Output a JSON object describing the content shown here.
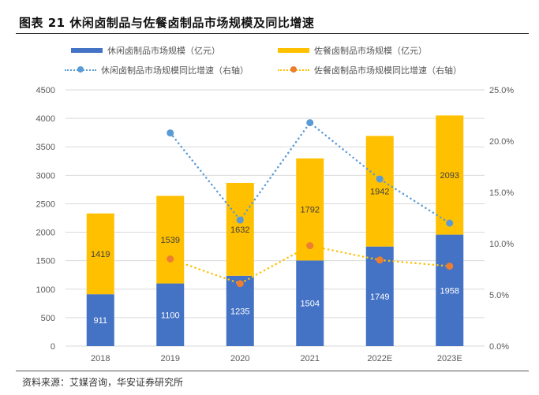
{
  "figure": {
    "title": "图表 21  休闲卤制品与佐餐卤制品市场规模及同比增速",
    "source": "资料来源：艾媒咨询，华安证券研究所"
  },
  "colors": {
    "leisure_bar": "#4472C4",
    "restaurant_bar": "#FFC000",
    "leisure_line": "#5B9BD5",
    "restaurant_line_dots": "#FFC000",
    "restaurant_line_marker": "#ED7D31",
    "grid": "#D9D9D9",
    "tick_text": "#595959"
  },
  "chart_data": {
    "type": "bar",
    "title": "休闲卤制品与佐餐卤制品市场规模及同比增速",
    "categories": [
      "2018",
      "2019",
      "2020",
      "2021",
      "2022E",
      "2023E"
    ],
    "series": [
      {
        "name": "休闲卤制品市场规模（亿元）",
        "type": "bar",
        "stack": "size",
        "axis": "left",
        "values": [
          911,
          1100,
          1235,
          1504,
          1749,
          1958
        ]
      },
      {
        "name": "佐餐卤制品市场规模（亿元）",
        "type": "bar",
        "stack": "size",
        "axis": "left",
        "values": [
          1419,
          1539,
          1632,
          1792,
          1942,
          2093
        ]
      },
      {
        "name": "休闲卤制品市场规模同比增速（右轴）",
        "type": "line",
        "style": "dotted",
        "axis": "right",
        "values": [
          null,
          20.8,
          12.3,
          21.8,
          16.3,
          12.0
        ]
      },
      {
        "name": "佐餐卤制品市场规模同比增速（右轴）",
        "type": "line",
        "style": "dotted",
        "axis": "right",
        "values": [
          null,
          8.5,
          6.1,
          9.8,
          8.4,
          7.8
        ]
      }
    ],
    "left_axis": {
      "min": 0,
      "max": 4500,
      "step": 500,
      "ticks": [
        "0",
        "500",
        "1000",
        "1500",
        "2000",
        "2500",
        "3000",
        "3500",
        "4000",
        "4500"
      ]
    },
    "right_axis": {
      "min": 0,
      "max": 25,
      "step": 5,
      "ticks": [
        "0.0%",
        "5.0%",
        "10.0%",
        "15.0%",
        "20.0%",
        "25.0%"
      ]
    },
    "xlabel": "",
    "ylabel": "",
    "grid": true,
    "legend_position": "top",
    "data_labels": true
  }
}
